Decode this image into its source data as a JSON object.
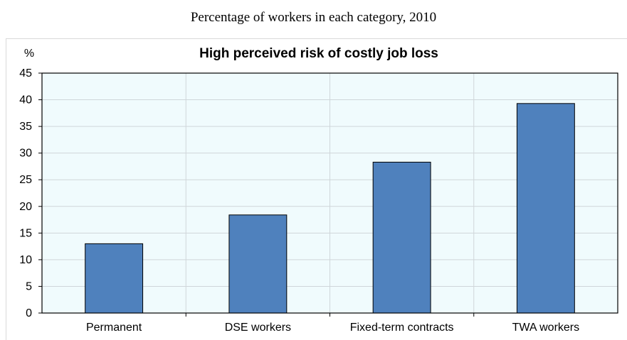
{
  "subtitle": "Percentage of workers in each category, 2010",
  "chart_data": {
    "type": "bar",
    "title": "High perceived risk of costly job loss",
    "ylabel": "%",
    "xlabel": "",
    "categories": [
      "Permanent",
      "DSE workers",
      "Fixed-term contracts",
      "TWA workers"
    ],
    "values": [
      13,
      18.4,
      28.3,
      39.3
    ],
    "ylim": [
      0,
      45
    ],
    "yticks": [
      "0",
      "5",
      "10",
      "15",
      "20",
      "25",
      "30",
      "35",
      "40",
      "45"
    ],
    "grid": true,
    "colors": {
      "bar": "#4f81bd",
      "plot_background": "#f0fbfd",
      "grid": "#cfd6da"
    }
  }
}
